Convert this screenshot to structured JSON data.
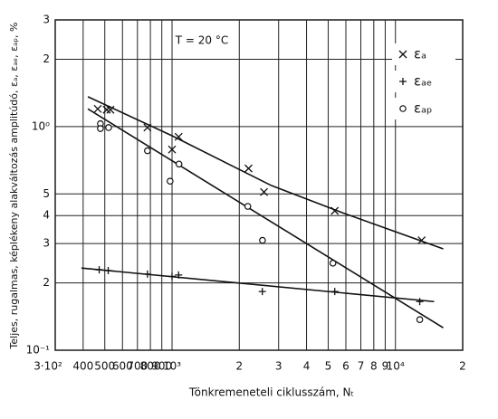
{
  "chart_data": {
    "type": "scatter",
    "ylabel": "Teljes, rugalmas, képlékeny alakváltozás amplitúdó, εₐ, εₐₑ, εₐₚ, %",
    "xlabel": "Tönkremeneteli ciklusszám, Nₜ",
    "annotation": "T = 20 °C",
    "log_x": true,
    "log_y": true,
    "grid": true,
    "legend": "upper right",
    "xlim": [
      300,
      20000
    ],
    "ylim": [
      0.1,
      3
    ],
    "xticks": [
      {
        "value": 300,
        "label": "3·10²"
      },
      400,
      500,
      600,
      700,
      800,
      900,
      {
        "value": 1000,
        "label": "10³"
      },
      {
        "value": 2000,
        "label": "2"
      },
      {
        "value": 3000,
        "label": "3"
      },
      {
        "value": 4000,
        "label": "4"
      },
      {
        "value": 5000,
        "label": "5"
      },
      {
        "value": 6000,
        "label": "6"
      },
      {
        "value": 7000,
        "label": "7"
      },
      {
        "value": 8000,
        "label": "8"
      },
      {
        "value": 9000,
        "label": "9"
      },
      {
        "value": 10000,
        "label": "10⁴"
      },
      {
        "value": 20000,
        "label": "2"
      }
    ],
    "yticks": [
      3,
      2,
      {
        "value": 1,
        "label": "10⁰"
      },
      {
        "value": 0.5,
        "label": "5"
      },
      {
        "value": 0.4,
        "label": "4"
      },
      {
        "value": 0.3,
        "label": "3"
      },
      {
        "value": 0.2,
        "label": "2"
      },
      {
        "value": 0.1,
        "label": "10⁻¹"
      }
    ],
    "series": [
      {
        "name": "εₐ",
        "marker": "x",
        "color": "#111",
        "x": [
          465,
          510,
          530,
          776,
          1000,
          1070,
          2200,
          2580,
          5350,
          13100
        ],
        "values": [
          1.2,
          1.19,
          1.19,
          0.99,
          0.79,
          0.9,
          0.65,
          0.51,
          0.42,
          0.31
        ],
        "curve": {
          "x": [
            420,
            1000,
            2786,
            5870,
            16370
          ],
          "values": [
            1.36,
            0.91,
            0.545,
            0.41,
            0.284
          ]
        }
      },
      {
        "name": "εₐₑ",
        "marker": "+",
        "color": "#111",
        "x": [
          472,
          518,
          776,
          1000,
          1070,
          2536,
          5350,
          12850
        ],
        "values": [
          0.229,
          0.227,
          0.219,
          0.214,
          0.217,
          0.183,
          0.183,
          0.165
        ],
        "curve": {
          "x": [
            393,
            14900
          ],
          "values": [
            0.233,
            0.165
          ]
        }
      },
      {
        "name": "εₐₚ",
        "marker": "o",
        "color": "#111",
        "x": [
          478,
          478,
          520,
          776,
          980,
          1074,
          2183,
          2540,
          5250,
          12850
        ],
        "values": [
          1.03,
          0.98,
          0.99,
          0.78,
          0.57,
          0.68,
          0.44,
          0.31,
          0.245,
          0.137
        ],
        "curve": {
          "x": [
            420,
            16370
          ],
          "values": [
            1.2,
            0.126
          ]
        }
      }
    ]
  }
}
